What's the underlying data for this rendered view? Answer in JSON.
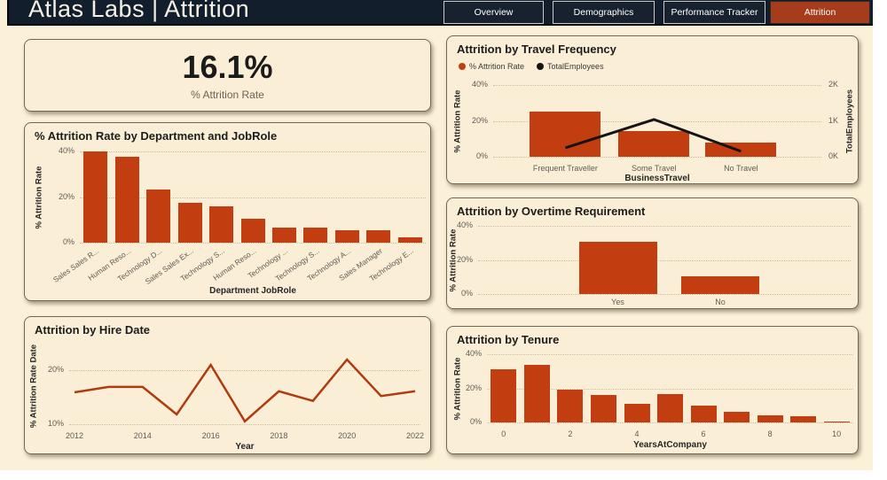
{
  "header": {
    "title": "Atlas Labs | Attrition",
    "tabs": [
      {
        "label": "Overview",
        "active": false
      },
      {
        "label": "Demographics",
        "active": false
      },
      {
        "label": "Performance Tracker",
        "active": false
      },
      {
        "label": "Attrition",
        "active": true
      }
    ]
  },
  "kpi": {
    "value": "16.1%",
    "label": "% Attrition Rate"
  },
  "colors": {
    "header_navy": "#121E2B",
    "tab_navy": "#17222E",
    "active_tab_rust": "#A63C1B",
    "canvas_cream": "#FBF0D8",
    "card_cream": "#FAEFD6",
    "bar_rust": "#C23E11",
    "line_rust": "#B13A0F",
    "line_black": "#141414"
  },
  "chart_data": [
    {
      "id": "dept_jobrole",
      "type": "bar",
      "title": "% Attrition Rate by Department and JobRole",
      "ylabel": "% Attrition Rate",
      "xlabel": "Department JobRole",
      "ylim": [
        0,
        40
      ],
      "yticks": [
        [
          40,
          "40%"
        ],
        [
          20,
          "20%"
        ],
        [
          0,
          "0%"
        ]
      ],
      "categories": [
        "Sales Sales R...",
        "Human Reso...",
        "Technology D...",
        "Sales Sales Ex...",
        "Technology S...",
        "Human Reso...",
        "Technology ...",
        "Technology S...",
        "Technology A...",
        "Sales Manager",
        "Technology E..."
      ],
      "values": [
        40,
        37.5,
        23.5,
        17.5,
        16,
        10.5,
        6.5,
        6.5,
        5.5,
        5.5,
        2.5
      ],
      "bar_color": "#C23E11",
      "grid": true,
      "legend_position": "none"
    },
    {
      "id": "hire_date",
      "type": "line",
      "title": "Attrition by Hire Date",
      "ylabel": "% Attrition Rate Date",
      "xlabel": "Year",
      "ylim": [
        9.8,
        24.3
      ],
      "yticks": [
        [
          20,
          "20%"
        ],
        [
          10,
          "10%"
        ]
      ],
      "x": [
        2012,
        2013,
        2014,
        2015,
        2016,
        2017,
        2018,
        2019,
        2020,
        2021,
        2022
      ],
      "values": [
        15.9,
        16.9,
        16.9,
        11.8,
        21.0,
        10.5,
        16.1,
        14.3,
        22.0,
        15.2,
        16.1
      ],
      "xticks": [
        [
          2012,
          "2012"
        ],
        [
          2014,
          "2014"
        ],
        [
          2016,
          "2016"
        ],
        [
          2018,
          "2018"
        ],
        [
          2020,
          "2020"
        ],
        [
          2022,
          "2022"
        ]
      ],
      "line_color": "#B13A0F",
      "grid": true,
      "legend_position": "none"
    },
    {
      "id": "travel",
      "type": "combo",
      "title": "Attrition by Travel Frequency",
      "legend": [
        {
          "name": "% Attrition Rate",
          "color": "#C23E11"
        },
        {
          "name": "TotalEmployees",
          "color": "#141414"
        }
      ],
      "legend_position": "top-left",
      "ylabel": "% Attrition Rate",
      "ylabel2": "TotalEmployees",
      "xlabel": "BusinessTravel",
      "ylim": [
        0,
        40
      ],
      "ylim2": [
        0,
        2
      ],
      "yticks": [
        [
          40,
          "40%"
        ],
        [
          20,
          "20%"
        ],
        [
          0,
          "0%"
        ]
      ],
      "yticks2": [
        [
          2,
          "2K"
        ],
        [
          1,
          "1K"
        ],
        [
          0,
          "0K"
        ]
      ],
      "categories": [
        "Frequent Traveller",
        "Some Travel",
        "No Travel"
      ],
      "bar_values": [
        25,
        14.5,
        8
      ],
      "line_values": [
        0.25,
        1.04,
        0.15
      ],
      "bar_color": "#C23E11",
      "line_color": "#141414",
      "grid": true
    },
    {
      "id": "overtime",
      "type": "bar",
      "title": "Attrition by Overtime Requirement",
      "ylabel": "% Attrition Rate",
      "xlabel": "",
      "ylim": [
        0,
        40
      ],
      "yticks": [
        [
          40,
          "40%"
        ],
        [
          20,
          "20%"
        ],
        [
          0,
          "0%"
        ]
      ],
      "categories": [
        "Yes",
        "No"
      ],
      "values": [
        30.5,
        10.5
      ],
      "bar_color": "#C23E11",
      "grid": true,
      "legend_position": "none"
    },
    {
      "id": "tenure",
      "type": "bar",
      "title": "Attrition by Tenure",
      "ylabel": "% Attrition Rate",
      "xlabel": "YearsAtCompany",
      "ylim": [
        0,
        40
      ],
      "yticks": [
        [
          40,
          "40%"
        ],
        [
          20,
          "20%"
        ],
        [
          0,
          "0%"
        ]
      ],
      "categories": [
        "0",
        "1",
        "2",
        "3",
        "4",
        "5",
        "6",
        "7",
        "8",
        "9",
        "10"
      ],
      "values": [
        31,
        34,
        19.5,
        16,
        11,
        16.5,
        10,
        6.5,
        4,
        3.5,
        0.7
      ],
      "tick_every": 2,
      "bar_color": "#C23E11",
      "grid": true,
      "legend_position": "none"
    }
  ]
}
